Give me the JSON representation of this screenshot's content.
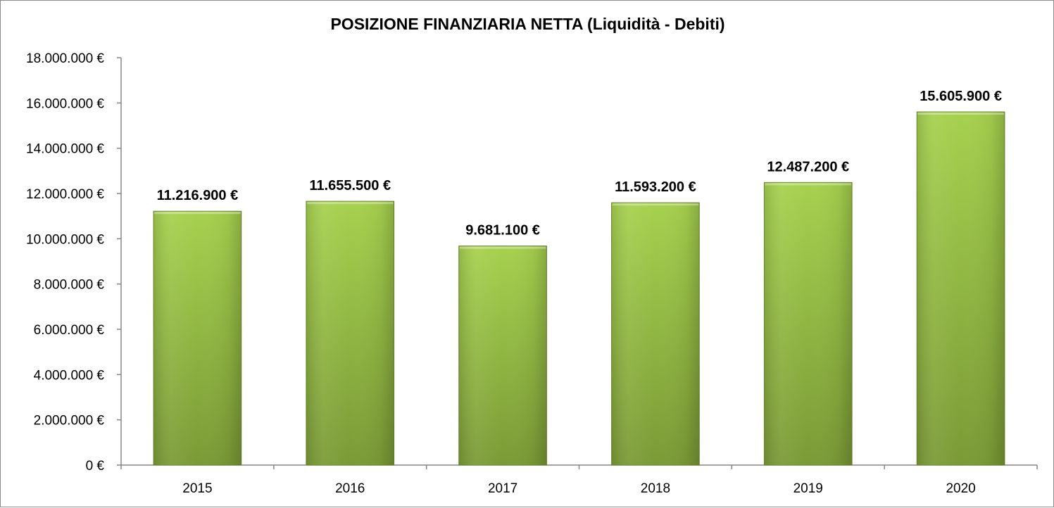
{
  "chart_data": {
    "type": "bar",
    "title": "POSIZIONE FINANZIARIA NETTA (Liquidità - Debiti)",
    "xlabel": "",
    "ylabel": "",
    "categories": [
      "2015",
      "2016",
      "2017",
      "2018",
      "2019",
      "2020"
    ],
    "values": [
      11216900,
      11655500,
      9681100,
      11593200,
      12487200,
      15605900
    ],
    "data_labels": [
      "11.216.900 €",
      "11.655.500 €",
      "9.681.100 €",
      "11.593.200 €",
      "12.487.200 €",
      "15.605.900 €"
    ],
    "ylim": [
      0,
      18000000
    ],
    "yticks": [
      0,
      2000000,
      4000000,
      6000000,
      8000000,
      10000000,
      12000000,
      14000000,
      16000000,
      18000000
    ],
    "ytick_labels": [
      "0 €",
      "2.000.000 €",
      "4.000.000 €",
      "6.000.000 €",
      "8.000.000 €",
      "10.000.000 €",
      "12.000.000 €",
      "14.000.000 €",
      "16.000.000 €",
      "18.000.000 €"
    ],
    "grid": false,
    "legend": "none",
    "colors": {
      "bar_light": "#a6d14e",
      "bar_dark": "#7a9a36",
      "bar_edge": "#6b8a2c",
      "axis": "#868686"
    }
  }
}
